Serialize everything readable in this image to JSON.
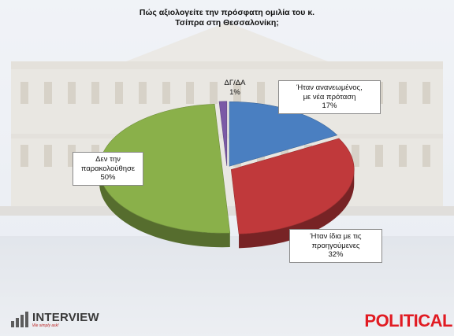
{
  "chart_data": {
    "type": "pie",
    "title": "Πώς αξιολογείτε την πρόσφατη ομιλία του κ. Τσίπρα στη Θεσσαλονίκη;",
    "title_lines": [
      "Πώς αξιολογείτε την πρόσφατη ομιλία του κ.",
      "Τσίπρα στη Θεσσαλονίκη;"
    ],
    "slices": [
      {
        "label_lines": [
          "Ήταν ανανεωμένος,",
          "με νέα πρόταση"
        ],
        "value": 17,
        "value_label": "17%",
        "color": "#4a7fc1"
      },
      {
        "label_lines": [
          "Ήταν ίδια με τις",
          "προηγούμενες"
        ],
        "value": 32,
        "value_label": "32%",
        "color": "#c0393b"
      },
      {
        "label_lines": [
          "Δεν την",
          "παρακολούθησε"
        ],
        "value": 50,
        "value_label": "50%",
        "color": "#8ab04a"
      },
      {
        "label_lines": [
          "ΔΓ/ΔΑ"
        ],
        "value": 1,
        "value_label": "1%",
        "color": "#7b5aa6"
      }
    ]
  },
  "branding": {
    "left_logo_name": "INTERVIEW",
    "left_logo_tagline": "We simply ask!",
    "right_logo": "POLITICAL"
  }
}
